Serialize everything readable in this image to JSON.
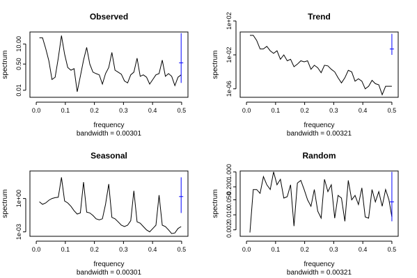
{
  "chart_data": [
    {
      "type": "line",
      "title": "Observed",
      "xlabel": "frequency",
      "ylabel": "spectrum",
      "subtitle": "bandwidth = 0.00301",
      "log_y": true,
      "xlim": [
        0,
        0.5
      ],
      "ylim": [
        0.0035,
        60
      ],
      "x_ticks": [
        0.0,
        0.1,
        0.2,
        0.3,
        0.4,
        0.5
      ],
      "x_tick_labels": [
        "0.0",
        "0.1",
        "0.2",
        "0.3",
        "0.4",
        "0.5"
      ],
      "y_ticks": [
        0.01,
        0.5,
        10
      ],
      "y_tick_labels": [
        "0.01",
        "0.50",
        "10.00"
      ],
      "x": [
        0.0108,
        0.0217,
        0.0325,
        0.0433,
        0.0542,
        0.065,
        0.0758,
        0.0867,
        0.0975,
        0.1083,
        0.1192,
        0.13,
        0.1408,
        0.1517,
        0.1625,
        0.1733,
        0.1842,
        0.195,
        0.2058,
        0.2167,
        0.2275,
        0.2383,
        0.2492,
        0.26,
        0.2708,
        0.2817,
        0.2925,
        0.3033,
        0.3142,
        0.325,
        0.3358,
        0.3467,
        0.3575,
        0.3683,
        0.3792,
        0.39,
        0.4008,
        0.4117,
        0.4225,
        0.4333,
        0.4442,
        0.455,
        0.4658,
        0.4767,
        0.4875,
        0.4983
      ],
      "y": [
        25,
        25,
        5,
        0.8,
        0.05,
        0.07,
        1.2,
        35,
        2.2,
        0.3,
        0.2,
        0.25,
        0.008,
        0.08,
        0.9,
        6,
        0.5,
        0.15,
        0.12,
        0.1,
        0.025,
        0.12,
        0.3,
        2.8,
        0.2,
        0.15,
        0.11,
        0.04,
        0.03,
        0.1,
        0.15,
        1.2,
        0.08,
        0.1,
        0.07,
        0.025,
        0.05,
        0.1,
        0.12,
        0.9,
        0.08,
        0.12,
        0.08,
        0.02,
        0.07,
        0.1
      ],
      "ci_bar": {
        "x": 0.4983,
        "low": 0.03,
        "high": 50,
        "center": 0.6
      }
    },
    {
      "type": "line",
      "title": "Trend",
      "xlabel": "frequency",
      "ylabel": "spectrum",
      "subtitle": "bandwidth = 0.00321",
      "log_y": true,
      "xlim": [
        0,
        0.5
      ],
      "ylim": [
        1e-07,
        5
      ],
      "x_ticks": [
        0.0,
        0.1,
        0.2,
        0.3,
        0.4,
        0.5
      ],
      "x_tick_labels": [
        "0.0",
        "0.1",
        "0.2",
        "0.3",
        "0.4",
        "0.5"
      ],
      "y_ticks": [
        1e-06,
        0.01,
        100
      ],
      "y_tick_labels": [
        "1e-06",
        "1e-02",
        "1e+02"
      ],
      "x": [
        0.0117,
        0.0233,
        0.035,
        0.0467,
        0.0583,
        0.07,
        0.0817,
        0.0933,
        0.105,
        0.1167,
        0.1283,
        0.14,
        0.1517,
        0.1633,
        0.175,
        0.1867,
        0.1983,
        0.21,
        0.2217,
        0.2333,
        0.245,
        0.2567,
        0.2683,
        0.28,
        0.2917,
        0.3033,
        0.315,
        0.3267,
        0.3383,
        0.35,
        0.3617,
        0.3733,
        0.385,
        0.3967,
        0.4083,
        0.42,
        0.4317,
        0.4433,
        0.455,
        0.4667,
        0.4783,
        0.49,
        0.5
      ],
      "y": [
        2,
        2,
        0.5,
        0.05,
        0.05,
        0.1,
        0.03,
        0.015,
        0.03,
        0.003,
        0.01,
        0.002,
        0.003,
        0.0004,
        0.0008,
        0.002,
        0.0015,
        0.002,
        0.0002,
        0.0006,
        0.0003,
        8e-05,
        0.0006,
        0.0005,
        0.0002,
        0.0001,
        2e-05,
        5e-06,
        2e-05,
        0.00015,
        0.0001,
        8e-06,
        1.5e-05,
        8e-06,
        1e-06,
        2e-06,
        1e-05,
        4e-06,
        3e-06,
        2e-07,
        2e-06,
        2e-06,
        2e-06
      ],
      "ci_bar": {
        "x": 0.5,
        "low": 0.01,
        "high": 3,
        "center": 0.05
      }
    },
    {
      "type": "line",
      "title": "Seasonal",
      "xlabel": "frequency",
      "ylabel": "spectrum",
      "subtitle": "bandwidth = 0.00301",
      "log_y": true,
      "xlim": [
        0,
        0.5
      ],
      "ylim": [
        0.0004,
        300
      ],
      "x_ticks": [
        0.0,
        0.1,
        0.2,
        0.3,
        0.4,
        0.5
      ],
      "x_tick_labels": [
        "0.0",
        "0.1",
        "0.2",
        "0.3",
        "0.4",
        "0.5"
      ],
      "y_ticks": [
        0.001,
        1
      ],
      "y_tick_labels": [
        "1e-03",
        "1e+00"
      ],
      "x": [
        0.0108,
        0.0217,
        0.0325,
        0.0433,
        0.0542,
        0.065,
        0.0758,
        0.0867,
        0.0975,
        0.1083,
        0.1192,
        0.13,
        0.1408,
        0.1517,
        0.1625,
        0.1733,
        0.1842,
        0.195,
        0.2058,
        0.2167,
        0.2275,
        0.2383,
        0.2492,
        0.26,
        0.2708,
        0.2817,
        0.2925,
        0.3033,
        0.3142,
        0.325,
        0.3358,
        0.3467,
        0.3575,
        0.3683,
        0.3792,
        0.39,
        0.4008,
        0.4117,
        0.4225,
        0.4333,
        0.4442,
        0.455,
        0.4658,
        0.4767,
        0.4875,
        0.4983
      ],
      "y": [
        0.5,
        0.3,
        0.4,
        0.7,
        1.0,
        1.2,
        1.3,
        80,
        0.6,
        0.4,
        0.2,
        0.08,
        0.04,
        0.05,
        30,
        0.06,
        0.05,
        0.03,
        0.015,
        0.012,
        0.015,
        0.3,
        20,
        0.02,
        0.015,
        0.008,
        0.004,
        0.003,
        0.004,
        0.01,
        5,
        0.008,
        0.006,
        0.003,
        0.0015,
        0.001,
        0.002,
        0.004,
        2,
        0.004,
        0.003,
        0.0015,
        0.0007,
        0.0008,
        0.002,
        0.003
      ],
      "ci_bar": {
        "x": 0.4983,
        "low": 0.05,
        "high": 80,
        "center": 1.5
      }
    },
    {
      "type": "line",
      "title": "Random",
      "xlabel": "frequency",
      "ylabel": "spectrum",
      "subtitle": "bandwidth = 0.00321",
      "log_y": true,
      "xlim": [
        0,
        0.5
      ],
      "ylim": [
        0.001,
        1.1
      ],
      "x_ticks": [
        0.0,
        0.1,
        0.2,
        0.3,
        0.4,
        0.5
      ],
      "x_tick_labels": [
        "0.0",
        "0.1",
        "0.2",
        "0.3",
        "0.4",
        "0.5"
      ],
      "y_ticks": [
        0.002,
        0.01,
        0.05,
        0.2,
        1.0
      ],
      "y_tick_labels": [
        "0.002",
        "0.010",
        "0.050",
        "0.200",
        "1.000"
      ],
      "x": [
        0.0117,
        0.0233,
        0.035,
        0.0467,
        0.0583,
        0.07,
        0.0817,
        0.0933,
        0.105,
        0.1167,
        0.1283,
        0.14,
        0.1517,
        0.1633,
        0.175,
        0.1867,
        0.1983,
        0.21,
        0.2217,
        0.2333,
        0.245,
        0.2567,
        0.2683,
        0.28,
        0.2917,
        0.3033,
        0.315,
        0.3267,
        0.3383,
        0.35,
        0.3617,
        0.3733,
        0.385,
        0.3967,
        0.4083,
        0.42,
        0.4317,
        0.4433,
        0.455,
        0.4667,
        0.4783,
        0.49,
        0.5
      ],
      "y": [
        0.0015,
        0.15,
        0.15,
        0.1,
        0.6,
        0.25,
        0.15,
        1.0,
        0.25,
        0.45,
        0.06,
        0.07,
        0.25,
        0.003,
        0.3,
        0.4,
        0.15,
        0.05,
        0.025,
        0.15,
        0.015,
        0.007,
        0.45,
        0.12,
        0.25,
        0.007,
        0.08,
        0.06,
        0.005,
        0.4,
        0.05,
        0.08,
        0.03,
        0.18,
        0.008,
        0.007,
        0.15,
        0.04,
        0.12,
        0.025,
        0.15,
        0.05,
        0.008
      ],
      "ci_bar": {
        "x": 0.5,
        "low": 0.005,
        "high": 1.0,
        "center": 0.04
      }
    }
  ]
}
